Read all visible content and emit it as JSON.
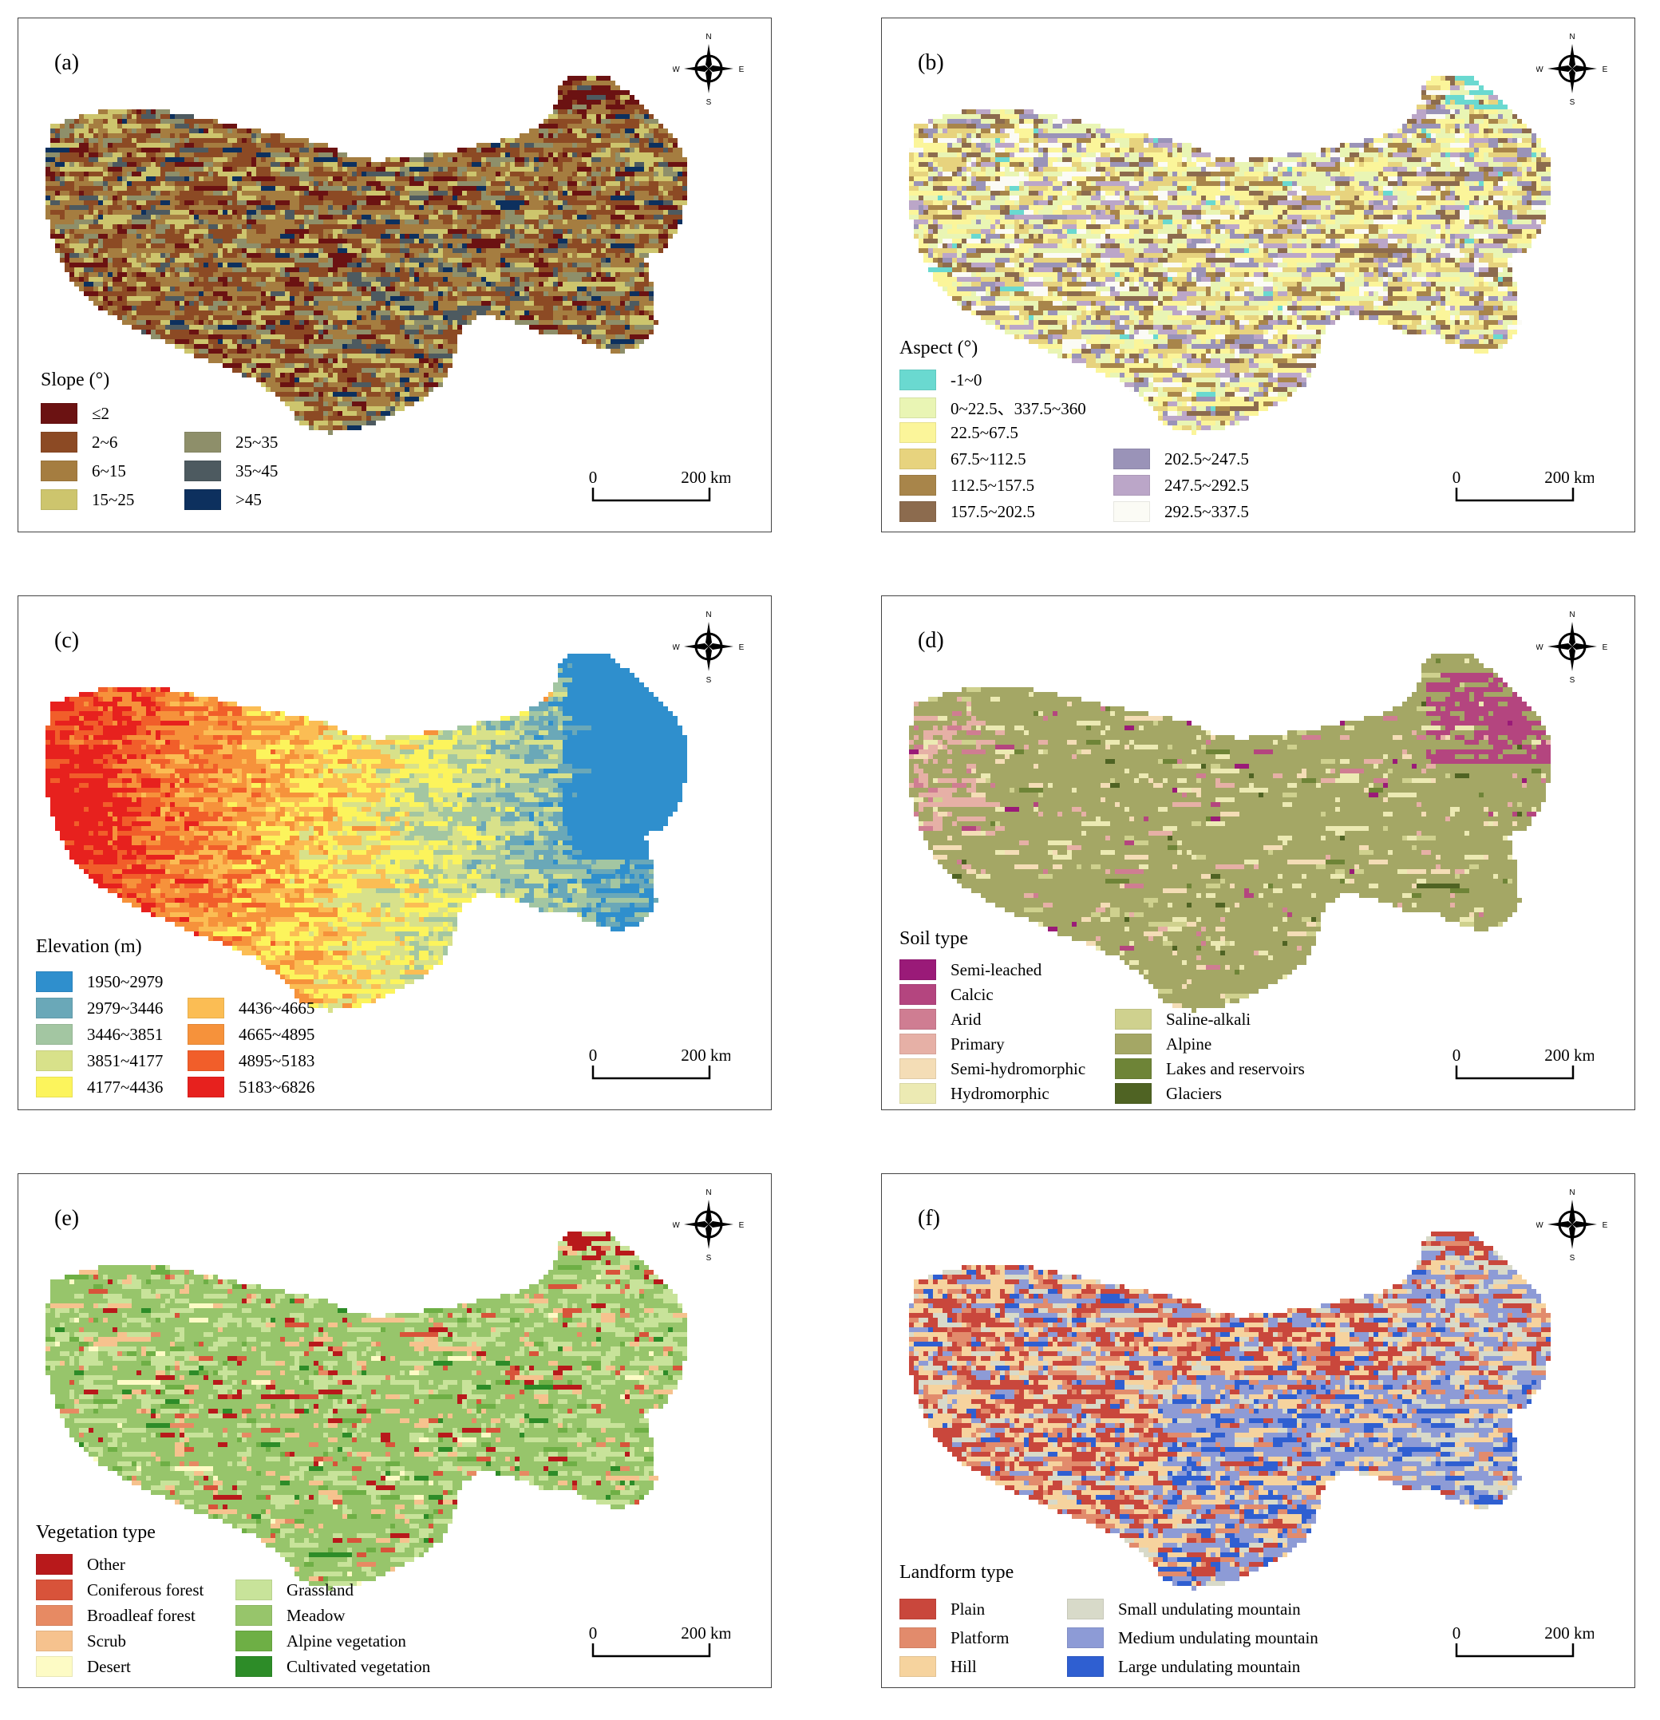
{
  "compass": {
    "n": "N",
    "s": "S",
    "e": "E",
    "w": "W"
  },
  "scale": {
    "start": "0",
    "end": "200 km"
  },
  "panels": [
    {
      "id": "a",
      "label": "(a)",
      "legend_title": "Slope (°)",
      "seed": 11,
      "shape": "main",
      "classes": [
        {
          "label": "≤2",
          "color": "#6b1212"
        },
        {
          "label": "2~6",
          "color": "#8c4a24"
        },
        {
          "label": "6~15",
          "color": "#a57d40"
        },
        {
          "label": "15~25",
          "color": "#cdc56d"
        },
        {
          "label": "25~35",
          "color": "#8e8f6a"
        },
        {
          "label": "35~45",
          "color": "#4d5a60"
        },
        {
          "label": ">45",
          "color": "#0d305e"
        }
      ]
    },
    {
      "id": "b",
      "label": "(b)",
      "legend_title": "Aspect (°)",
      "seed": 23,
      "shape": "main",
      "classes": [
        {
          "label": "-1~0",
          "color": "#6ad9d0"
        },
        {
          "label": "0~22.5、337.5~360",
          "color": "#e9f5b4"
        },
        {
          "label": "22.5~67.5",
          "color": "#fbf59a"
        },
        {
          "label": "67.5~112.5",
          "color": "#e7d37e"
        },
        {
          "label": "112.5~157.5",
          "color": "#a8854a"
        },
        {
          "label": "157.5~202.5",
          "color": "#8c6b4e"
        },
        {
          "label": "202.5~247.5",
          "color": "#9a93b8"
        },
        {
          "label": "247.5~292.5",
          "color": "#bba6c8"
        },
        {
          "label": "292.5~337.5",
          "color": "#fbfbf5"
        }
      ]
    },
    {
      "id": "c",
      "label": "(c)",
      "legend_title": "Elevation (m)",
      "seed": 37,
      "shape": "main",
      "classes": [
        {
          "label": "1950~2979",
          "color": "#2f8fcd"
        },
        {
          "label": "2979~3446",
          "color": "#6aa8b8"
        },
        {
          "label": "3446~3851",
          "color": "#a3c6a2"
        },
        {
          "label": "3851~4177",
          "color": "#d8e18a"
        },
        {
          "label": "4177~4436",
          "color": "#fcf45c"
        },
        {
          "label": "4436~4665",
          "color": "#fbbd54"
        },
        {
          "label": "4665~4895",
          "color": "#f6923b"
        },
        {
          "label": "4895~5183",
          "color": "#f15e2a"
        },
        {
          "label": "5183~6826",
          "color": "#e7211e"
        }
      ]
    },
    {
      "id": "d",
      "label": "(d)",
      "legend_title": "Soil type",
      "seed": 41,
      "shape": "main",
      "classes": [
        {
          "label": "Semi-leached",
          "color": "#9a1a78"
        },
        {
          "label": "Calcic",
          "color": "#b4457f"
        },
        {
          "label": "Arid",
          "color": "#cf7d92"
        },
        {
          "label": "Primary",
          "color": "#e6b0a6"
        },
        {
          "label": "Semi-hydromorphic",
          "color": "#f4ddb6"
        },
        {
          "label": "Hydromorphic",
          "color": "#eceab3"
        },
        {
          "label": "Saline-alkali",
          "color": "#cfd18e"
        },
        {
          "label": "Alpine",
          "color": "#a4a765"
        },
        {
          "label": "Lakes and reservoirs",
          "color": "#6e8437"
        },
        {
          "label": "Glaciers",
          "color": "#4f6323"
        }
      ]
    },
    {
      "id": "e",
      "label": "(e)",
      "legend_title": "Vegetation type",
      "seed": 53,
      "shape": "main",
      "classes": [
        {
          "label": "Other",
          "color": "#b8191b"
        },
        {
          "label": "Coniferous forest",
          "color": "#d8533a"
        },
        {
          "label": "Broadleaf forest",
          "color": "#e78a63"
        },
        {
          "label": "Scrub",
          "color": "#f6c28e"
        },
        {
          "label": "Desert",
          "color": "#fdfbc5"
        },
        {
          "label": "Grassland",
          "color": "#c8e39a"
        },
        {
          "label": "Meadow",
          "color": "#97c56b"
        },
        {
          "label": "Alpine vegetation",
          "color": "#6eaf45"
        },
        {
          "label": "Cultivated vegetation",
          "color": "#2d8c28"
        }
      ]
    },
    {
      "id": "f",
      "label": "(f)",
      "legend_title": "Landform type",
      "seed": 67,
      "shape": "main",
      "classes": [
        {
          "label": "Plain",
          "color": "#c9473c"
        },
        {
          "label": "Platform",
          "color": "#e28b6c"
        },
        {
          "label": "Hill",
          "color": "#f6d39e"
        },
        {
          "label": "Small undulating mountain",
          "color": "#d8dac9"
        },
        {
          "label": "Medium undulating mountain",
          "color": "#8d9bd6"
        },
        {
          "label": "Large undulating mountain",
          "color": "#2f5fd1"
        }
      ]
    }
  ]
}
